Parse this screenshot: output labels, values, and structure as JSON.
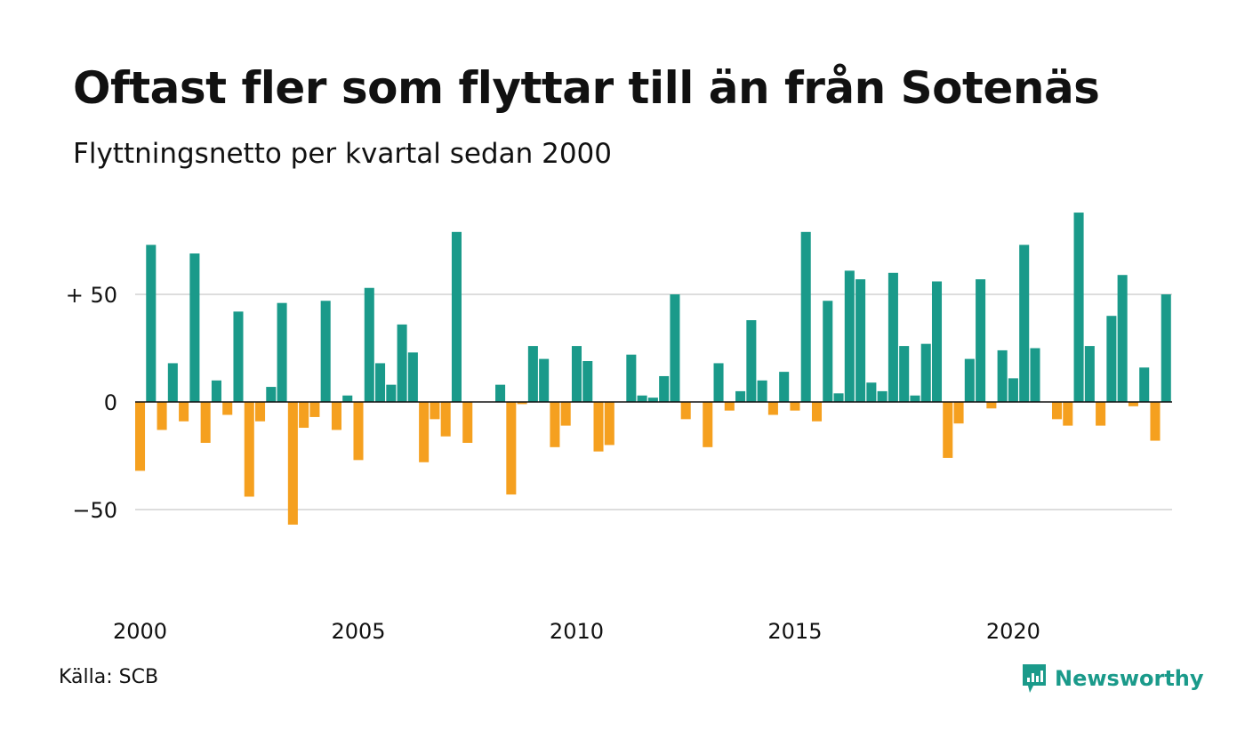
{
  "title": "Oftast fler som flyttar till än från Sotenäs",
  "subtitle": "Flyttningsnetto per kvartal sedan 2000",
  "source": "Källa: SCB",
  "brand": {
    "name": "Newsworthy",
    "icon": "newsworthy-chart-icon",
    "color": "#1a9a8a"
  },
  "colors": {
    "positive": "#1a9a8a",
    "negative": "#f5a01f",
    "grid": "#dddddd",
    "zero_line": "#111111"
  },
  "chart_data": {
    "type": "bar",
    "x_start": "2000-Q1",
    "period": "quarter",
    "values": [
      -32,
      73,
      -13,
      18,
      -9,
      69,
      -19,
      10,
      -6,
      42,
      -44,
      -9,
      7,
      46,
      -57,
      -12,
      -7,
      47,
      -13,
      3,
      -27,
      53,
      18,
      8,
      36,
      23,
      -28,
      -8,
      -16,
      79,
      -19,
      0,
      0,
      8,
      -43,
      -1,
      26,
      20,
      -21,
      -11,
      26,
      19,
      -23,
      -20,
      0,
      22,
      3,
      2,
      12,
      50,
      -8,
      0,
      -21,
      18,
      -4,
      5,
      38,
      10,
      -6,
      14,
      -4,
      79,
      -9,
      47,
      4,
      61,
      57,
      9,
      5,
      60,
      26,
      3,
      27,
      56,
      -26,
      -10,
      20,
      57,
      -3,
      24,
      11,
      73,
      25,
      0,
      -8,
      -11,
      88,
      26,
      -11,
      40,
      59,
      -2,
      16,
      -18,
      50
    ],
    "x_ticks": [
      "2000",
      "2005",
      "2010",
      "2015",
      "2020"
    ],
    "y_ticks": [
      {
        "value": 50,
        "label": "+ 50"
      },
      {
        "value": 0,
        "label": "0"
      },
      {
        "value": -50,
        "label": "−50"
      }
    ],
    "ylim": [
      -100,
      90
    ],
    "grid": true
  }
}
